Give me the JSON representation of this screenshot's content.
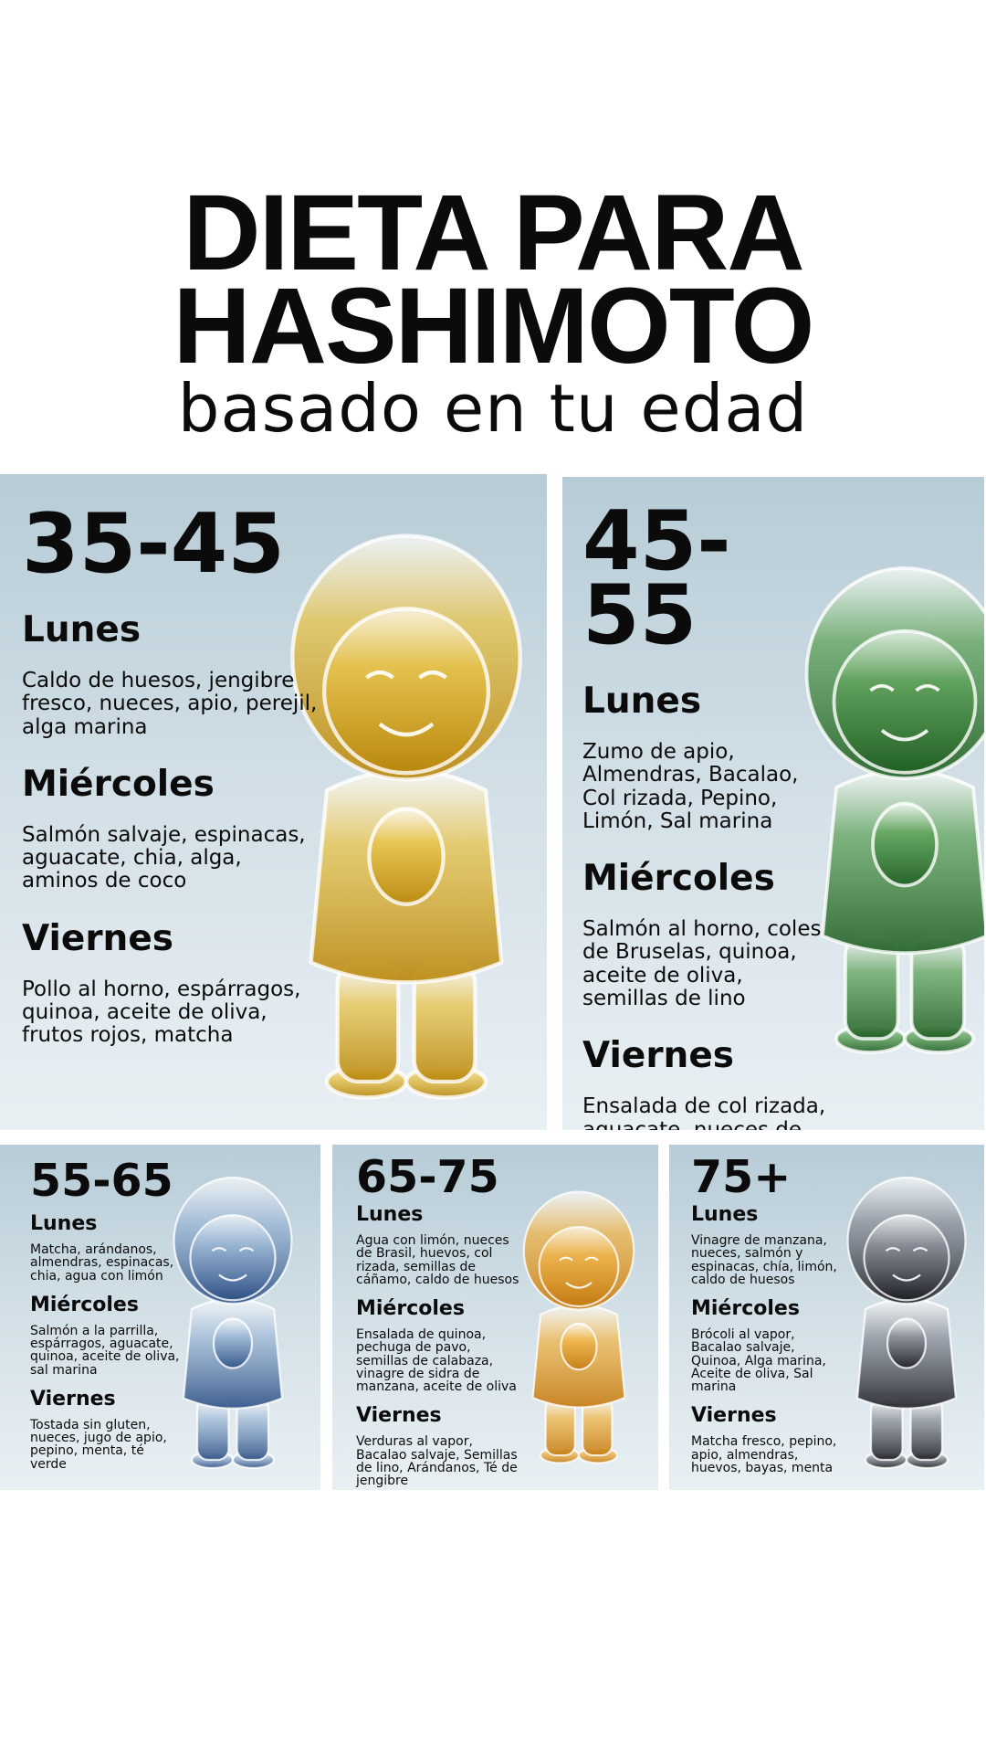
{
  "header": {
    "title_line1": "DIETA PARA",
    "title_line2": "HASHIMOTO",
    "subtitle": "basado en tu edad"
  },
  "panels": [
    {
      "age": "35-45",
      "days": [
        {
          "day": "Lunes",
          "foods": "Caldo de huesos, jengibre fresco, nueces, apio, perejil, alga marina"
        },
        {
          "day": "Miércoles",
          "foods": "Salmón salvaje, espinacas, aguacate, chia, alga, aminos de coco"
        },
        {
          "day": "Viernes",
          "foods": "Pollo al horno, espárragos, quinoa, aceite de oliva, frutos rojos, matcha"
        }
      ]
    },
    {
      "age": "45-55",
      "days": [
        {
          "day": "Lunes",
          "foods": "Zumo de apio, Almendras, Bacalao, Col rizada, Pepino, Limón, Sal marina"
        },
        {
          "day": "Miércoles",
          "foods": "Salmón al horno, coles de Bruselas, quinoa, aceite de oliva, semillas de lino"
        },
        {
          "day": "Viernes",
          "foods": "Ensalada de col rizada, aguacate, nueces de Brasil, caldo de huesos, jengibre, té verde"
        }
      ]
    },
    {
      "age": "55-65",
      "days": [
        {
          "day": "Lunes",
          "foods": "Matcha, arándanos, almendras, espinacas, chia, agua con limón"
        },
        {
          "day": "Miércoles",
          "foods": "Salmón a la parrilla, espárragos, aguacate, quinoa, aceite de oliva, sal marina"
        },
        {
          "day": "Viernes",
          "foods": "Tostada sin gluten, nueces, jugo de apio, pepino, menta, té verde"
        }
      ]
    },
    {
      "age": "65-75",
      "days": [
        {
          "day": "Lunes",
          "foods": "Agua con limón, nueces de Brasil, huevos, col rizada, semillas de cáñamo, caldo de huesos"
        },
        {
          "day": "Miércoles",
          "foods": "Ensalada de quinoa, pechuga de pavo, semillas de calabaza, vinagre de sidra de manzana, aceite de oliva"
        },
        {
          "day": "Viernes",
          "foods": "Verduras al vapor, Bacalao salvaje, Semillas de lino, Arándanos, Té de jengibre"
        }
      ]
    },
    {
      "age": "75+",
      "days": [
        {
          "day": "Lunes",
          "foods": "Vinagre de manzana, nueces, salmón y espinacas, chía, limón, caldo de huesos"
        },
        {
          "day": "Miércoles",
          "foods": "Brócoli al vapor, Bacalao salvaje, Quinoa, Alga marina, Aceite de oliva, Sal marina"
        },
        {
          "day": "Viernes",
          "foods": "Matcha fresco, pepino, apio, almendras, huevos, bayas, menta"
        }
      ]
    }
  ]
}
